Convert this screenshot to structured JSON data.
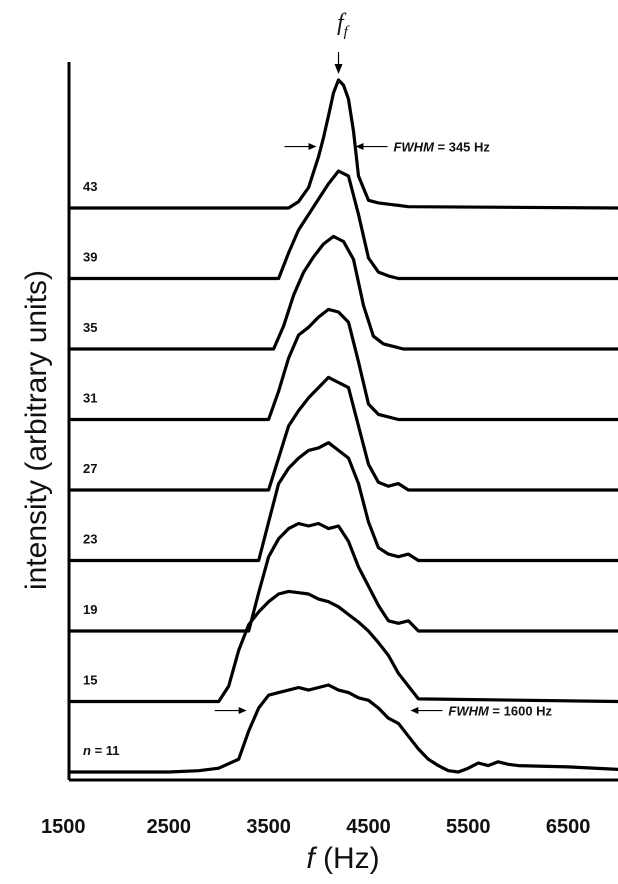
{
  "chart_data": {
    "type": "line",
    "title": "",
    "ylabel": "intensity (arbitrary units)",
    "xlabel_symbol": "f",
    "xlabel_unit": " (Hz)",
    "xlim": [
      1500,
      7000
    ],
    "xticks": [
      1500,
      2500,
      3500,
      4500,
      5500,
      6500
    ],
    "xtick_labels": [
      "1500",
      "2500",
      "3500",
      "4500",
      "5500",
      "6500"
    ],
    "grid": false,
    "peak_label_base": "f",
    "peak_label_sub": "f",
    "peak_frequency": 4200,
    "series": [
      {
        "name": "n = 11",
        "label_prefix": "n",
        "label_value": " = 11",
        "fwhm_label": "FWHM",
        "fwhm_value": " = 1600 Hz",
        "fwhm_range": [
          3300,
          4900
        ],
        "x": [
          1500,
          2500,
          2800,
          3000,
          3200,
          3300,
          3400,
          3500,
          3600,
          3700,
          3800,
          3900,
          4000,
          4100,
          4200,
          4300,
          4400,
          4500,
          4600,
          4700,
          4800,
          4900,
          5000,
          5100,
          5200,
          5300,
          5400,
          5500,
          5600,
          5700,
          5800,
          5900,
          6000,
          6500,
          7000
        ],
        "y": [
          0,
          0,
          0.01,
          0.03,
          0.1,
          0.32,
          0.5,
          0.6,
          0.62,
          0.64,
          0.66,
          0.64,
          0.66,
          0.68,
          0.64,
          0.62,
          0.58,
          0.56,
          0.5,
          0.42,
          0.38,
          0.28,
          0.18,
          0.1,
          0.05,
          0.01,
          0.0,
          0.03,
          0.07,
          0.05,
          0.08,
          0.06,
          0.05,
          0.04,
          0.02
        ]
      },
      {
        "name": "15",
        "label_value": "15",
        "x": [
          1500,
          3000,
          3100,
          3200,
          3300,
          3400,
          3500,
          3600,
          3700,
          3800,
          3900,
          4000,
          4100,
          4200,
          4300,
          4400,
          4500,
          4600,
          4700,
          4800,
          4900,
          5000,
          7000
        ],
        "y": [
          0,
          0,
          0.12,
          0.4,
          0.6,
          0.7,
          0.78,
          0.84,
          0.86,
          0.85,
          0.84,
          0.8,
          0.78,
          0.74,
          0.68,
          0.62,
          0.55,
          0.46,
          0.36,
          0.22,
          0.12,
          0.02,
          0
        ]
      },
      {
        "name": "19",
        "label_value": "19",
        "x": [
          1500,
          3300,
          3400,
          3500,
          3600,
          3700,
          3800,
          3900,
          4000,
          4100,
          4200,
          4300,
          4400,
          4500,
          4600,
          4700,
          4800,
          4900,
          5000,
          7000
        ],
        "y": [
          0,
          0,
          0.3,
          0.58,
          0.72,
          0.8,
          0.84,
          0.82,
          0.84,
          0.8,
          0.82,
          0.7,
          0.5,
          0.35,
          0.2,
          0.08,
          0.06,
          0.08,
          0,
          0
        ]
      },
      {
        "name": "23",
        "label_value": "23",
        "x": [
          1500,
          3400,
          3500,
          3600,
          3700,
          3800,
          3900,
          4000,
          4100,
          4200,
          4300,
          4400,
          4500,
          4600,
          4700,
          4800,
          4900,
          5000,
          7000
        ],
        "y": [
          0,
          0,
          0.3,
          0.6,
          0.72,
          0.8,
          0.86,
          0.88,
          0.92,
          0.86,
          0.8,
          0.6,
          0.3,
          0.1,
          0.05,
          0.03,
          0.05,
          0,
          0
        ]
      },
      {
        "name": "27",
        "label_value": "27",
        "x": [
          1500,
          3500,
          3600,
          3700,
          3800,
          3900,
          4000,
          4100,
          4200,
          4300,
          4400,
          4500,
          4600,
          4700,
          4800,
          4900,
          7000
        ],
        "y": [
          0,
          0,
          0.25,
          0.5,
          0.62,
          0.72,
          0.8,
          0.88,
          0.84,
          0.8,
          0.5,
          0.2,
          0.06,
          0.03,
          0.05,
          0,
          0
        ]
      },
      {
        "name": "31",
        "label_value": "31",
        "x": [
          1500,
          3500,
          3600,
          3700,
          3800,
          3900,
          4000,
          4100,
          4200,
          4300,
          4400,
          4500,
          4600,
          4700,
          4800,
          7000
        ],
        "y": [
          0,
          0,
          0.22,
          0.48,
          0.66,
          0.72,
          0.8,
          0.86,
          0.84,
          0.76,
          0.45,
          0.12,
          0.04,
          0.02,
          0,
          0
        ]
      },
      {
        "name": "35",
        "label_value": "35",
        "x": [
          1500,
          3550,
          3650,
          3750,
          3850,
          3950,
          4050,
          4150,
          4250,
          4350,
          4450,
          4550,
          4650,
          4750,
          4850,
          7000
        ],
        "y": [
          0,
          0,
          0.18,
          0.42,
          0.6,
          0.72,
          0.82,
          0.88,
          0.84,
          0.7,
          0.34,
          0.1,
          0.04,
          0.02,
          0,
          0
        ]
      },
      {
        "name": "39",
        "label_value": "39",
        "x": [
          1500,
          3600,
          3700,
          3800,
          3900,
          4000,
          4100,
          4200,
          4300,
          4400,
          4500,
          4600,
          4700,
          4800,
          7000
        ],
        "y": [
          0,
          0,
          0.2,
          0.38,
          0.5,
          0.62,
          0.74,
          0.84,
          0.8,
          0.5,
          0.16,
          0.05,
          0.02,
          0,
          0
        ]
      },
      {
        "name": "43",
        "label_value": "43",
        "fwhm_label": "FWHM",
        "fwhm_value": " = 345 Hz",
        "fwhm_range": [
          4000,
          4350
        ],
        "x": [
          1500,
          3700,
          3800,
          3900,
          4000,
          4050,
          4100,
          4150,
          4200,
          4250,
          4300,
          4350,
          4400,
          4500,
          4600,
          4700,
          4800,
          4900,
          7000
        ],
        "y": [
          0,
          0,
          0.05,
          0.16,
          0.4,
          0.55,
          0.72,
          0.9,
          1.0,
          0.96,
          0.85,
          0.6,
          0.25,
          0.06,
          0.04,
          0.03,
          0.02,
          0.01,
          0
        ]
      }
    ]
  }
}
